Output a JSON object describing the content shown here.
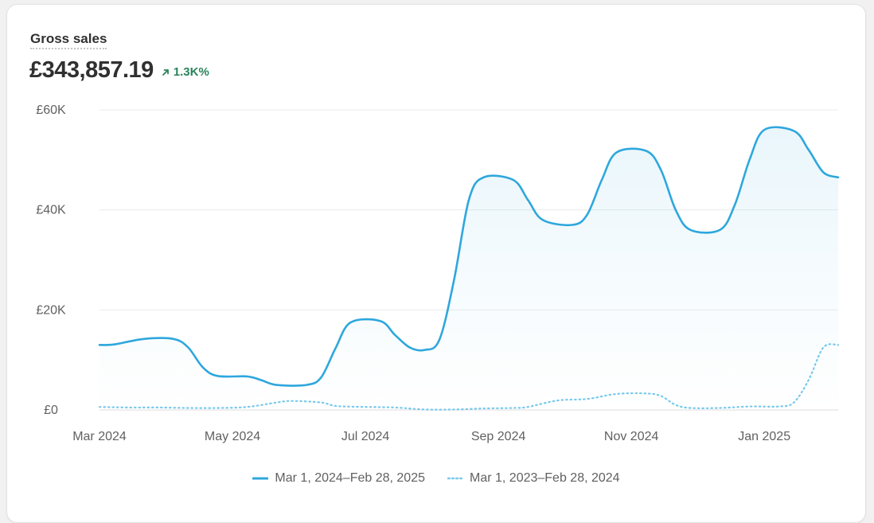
{
  "header": {
    "title": "Gross sales",
    "total": "£343,857.19",
    "change": "1.3K%"
  },
  "colors": {
    "primary_line": "#2ea7dd",
    "comparison_line": "#79c9ec",
    "positive": "#29845a",
    "grid": "#ebebeb"
  },
  "icons": {
    "change": "arrow-up-right-icon"
  },
  "legend": [
    {
      "label": "Mar 1, 2024–Feb 28, 2025",
      "style": "solid"
    },
    {
      "label": "Mar 1, 2023–Feb 28, 2024",
      "style": "dotted"
    }
  ],
  "chart_data": {
    "type": "area",
    "y_ticks": [
      {
        "value": 0,
        "label": "£0"
      },
      {
        "value": 20000,
        "label": "£20K"
      },
      {
        "value": 40000,
        "label": "£40K"
      },
      {
        "value": 60000,
        "label": "£60K"
      }
    ],
    "ylim": [
      0,
      60000
    ],
    "x_range": [
      0,
      50
    ],
    "x_ticks": [
      {
        "week": 0,
        "label": "Mar 2024"
      },
      {
        "week": 9,
        "label": "May 2024"
      },
      {
        "week": 18,
        "label": "Jul 2024"
      },
      {
        "week": 27,
        "label": "Sep 2024"
      },
      {
        "week": 36,
        "label": "Nov 2024"
      },
      {
        "week": 45,
        "label": "Jan 2025"
      }
    ],
    "grid": true,
    "legend_position": "bottom",
    "series": [
      {
        "name": "Mar 1, 2024–Feb 28, 2025",
        "style": "solid",
        "fill": true,
        "points": [
          [
            0,
            13000
          ],
          [
            1,
            13100
          ],
          [
            3,
            14200
          ],
          [
            5,
            14200
          ],
          [
            6,
            12500
          ],
          [
            7,
            8500
          ],
          [
            8,
            6800
          ],
          [
            10,
            6700
          ],
          [
            11,
            5900
          ],
          [
            12,
            5000
          ],
          [
            14,
            5000
          ],
          [
            15,
            6500
          ],
          [
            16,
            12500
          ],
          [
            17,
            17500
          ],
          [
            19,
            17800
          ],
          [
            20,
            15000
          ],
          [
            21,
            12500
          ],
          [
            22,
            12000
          ],
          [
            23,
            14000
          ],
          [
            24,
            26000
          ],
          [
            25,
            42000
          ],
          [
            26,
            46500
          ],
          [
            28,
            46000
          ],
          [
            29,
            42000
          ],
          [
            30,
            38000
          ],
          [
            32,
            37000
          ],
          [
            33,
            39000
          ],
          [
            34,
            46000
          ],
          [
            35,
            51500
          ],
          [
            37,
            51800
          ],
          [
            38,
            48000
          ],
          [
            39,
            40000
          ],
          [
            40,
            36000
          ],
          [
            42,
            36000
          ],
          [
            43,
            41000
          ],
          [
            44,
            50000
          ],
          [
            45,
            56000
          ],
          [
            47,
            55800
          ],
          [
            48,
            52000
          ],
          [
            49,
            47500
          ],
          [
            50,
            46500
          ]
        ]
      },
      {
        "name": "Mar 1, 2023–Feb 28, 2024",
        "style": "dotted",
        "fill": false,
        "points": [
          [
            0,
            600
          ],
          [
            2,
            500
          ],
          [
            4,
            500
          ],
          [
            6,
            400
          ],
          [
            8,
            400
          ],
          [
            10,
            600
          ],
          [
            12,
            1500
          ],
          [
            13,
            1800
          ],
          [
            15,
            1500
          ],
          [
            16,
            800
          ],
          [
            18,
            600
          ],
          [
            20,
            500
          ],
          [
            22,
            100
          ],
          [
            24,
            100
          ],
          [
            26,
            300
          ],
          [
            28,
            400
          ],
          [
            29,
            600
          ],
          [
            31,
            1900
          ],
          [
            33,
            2200
          ],
          [
            35,
            3200
          ],
          [
            37,
            3300
          ],
          [
            38,
            2800
          ],
          [
            39,
            1000
          ],
          [
            40,
            400
          ],
          [
            42,
            400
          ],
          [
            44,
            700
          ],
          [
            46,
            700
          ],
          [
            47,
            1500
          ],
          [
            48,
            6000
          ],
          [
            49,
            12500
          ],
          [
            50,
            13000
          ]
        ]
      }
    ]
  }
}
